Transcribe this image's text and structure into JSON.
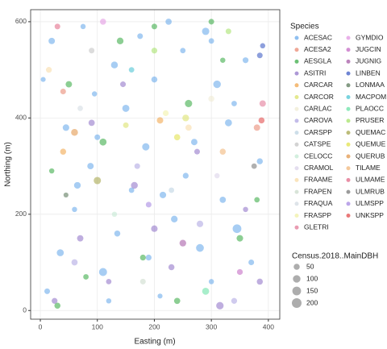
{
  "chart_data": {
    "type": "scatter",
    "x_label": "Easting (m)",
    "y_label": "Northing (m)",
    "xlim": [
      -17,
      420
    ],
    "ylim": [
      -18,
      625
    ],
    "xticks": [
      0,
      100,
      200,
      300,
      400
    ],
    "yticks": [
      0,
      200,
      400,
      600
    ],
    "grid": true,
    "legend_title": "Species",
    "legend_position": "right",
    "size_title": "Census.2018..MainDBH",
    "size_legend": [
      50,
      100,
      150,
      200
    ],
    "series": [
      {
        "name": "ACESAC",
        "color": "#5fa4ea",
        "x": [
          12,
          35,
          60,
          88,
          110,
          135,
          160,
          185,
          210,
          235,
          255,
          280,
          300,
          320,
          345,
          370,
          45,
          95,
          150,
          200,
          250,
          310,
          360,
          20,
          75,
          130,
          175,
          225,
          290,
          340,
          385,
          65,
          120,
          190,
          270,
          330,
          5,
          100,
          215,
          300
        ],
        "y": [
          40,
          120,
          210,
          300,
          80,
          160,
          250,
          340,
          30,
          190,
          280,
          130,
          60,
          230,
          170,
          100,
          380,
          450,
          420,
          480,
          540,
          470,
          520,
          560,
          590,
          510,
          570,
          600,
          580,
          430,
          310,
          260,
          20,
          110,
          350,
          390,
          480,
          360,
          240,
          560
        ],
        "sizes": [
          40,
          80,
          30,
          60,
          120,
          50,
          35,
          90,
          25,
          70,
          45,
          110,
          30,
          55,
          150,
          40,
          65,
          30,
          85,
          50,
          35,
          100,
          45,
          60,
          30,
          75,
          40,
          55,
          90,
          35,
          50,
          70,
          30,
          45,
          60,
          80,
          25,
          40,
          65,
          35
        ]
      },
      {
        "name": "ACESA2",
        "color": "#e8826a",
        "x": [
          380,
          40
        ],
        "y": [
          380,
          455
        ],
        "sizes": [
          60,
          40
        ]
      },
      {
        "name": "AESGLA",
        "color": "#2ea53b",
        "x": [
          30,
          80,
          140,
          200,
          260,
          320,
          50,
          180,
          240,
          380,
          110,
          300,
          20,
          350
        ],
        "y": [
          10,
          70,
          560,
          590,
          430,
          520,
          470,
          110,
          20,
          230,
          350,
          600,
          290,
          150
        ],
        "sizes": [
          50,
          35,
          70,
          40,
          90,
          30,
          60,
          45,
          55,
          35,
          80,
          40,
          30,
          65
        ]
      },
      {
        "name": "ASITRI",
        "color": "#8a6cc4",
        "x": [
          25,
          70,
          120,
          165,
          230,
          275,
          315,
          360,
          90,
          200,
          145,
          385
        ],
        "y": [
          20,
          150,
          60,
          260,
          90,
          330,
          10,
          210,
          390,
          170,
          470,
          60
        ],
        "sizes": [
          45,
          60,
          35,
          75,
          50,
          40,
          95,
          30,
          55,
          65,
          40,
          50
        ]
      },
      {
        "name": "CARCAR",
        "color": "#f0a040",
        "x": [
          40,
          210
        ],
        "y": [
          330,
          395
        ],
        "sizes": [
          50,
          60
        ]
      },
      {
        "name": "CARCOR",
        "color": "#d8e060",
        "x": [
          150,
          255
        ],
        "y": [
          385,
          400
        ],
        "sizes": [
          40,
          70
        ]
      },
      {
        "name": "CARLAC",
        "color": "#eee9cf",
        "x": [
          300
        ],
        "y": [
          440
        ],
        "sizes": [
          50
        ]
      },
      {
        "name": "CAROVA",
        "color": "#a9a0e0",
        "x": [
          60,
          170,
          280,
          340
        ],
        "y": [
          100,
          300,
          180,
          20
        ],
        "sizes": [
          55,
          40,
          65,
          45
        ]
      },
      {
        "name": "CARSPP",
        "color": "#b8d0e0",
        "x": [
          230
        ],
        "y": [
          250
        ],
        "sizes": [
          35
        ]
      },
      {
        "name": "CATSPE",
        "color": "#c0c0c0",
        "x": [
          90
        ],
        "y": [
          540
        ],
        "sizes": [
          40
        ]
      },
      {
        "name": "CELOCC",
        "color": "#c0e8d0",
        "x": [
          130
        ],
        "y": [
          200
        ],
        "sizes": [
          30
        ]
      },
      {
        "name": "CRAMOL",
        "color": "#d8d0e8",
        "x": [
          310
        ],
        "y": [
          280
        ],
        "sizes": [
          30
        ]
      },
      {
        "name": "FRAAME",
        "color": "#f8d8a0",
        "x": [
          15,
          260
        ],
        "y": [
          500,
          380
        ],
        "sizes": [
          45,
          55
        ]
      },
      {
        "name": "FRAPEN",
        "color": "#c8d8c8",
        "x": [
          180
        ],
        "y": [
          60
        ],
        "sizes": [
          40
        ]
      },
      {
        "name": "FRAQUA",
        "color": "#d0d8e0",
        "x": [
          70
        ],
        "y": [
          420
        ],
        "sizes": [
          35
        ]
      },
      {
        "name": "FRASPP",
        "color": "#f0f0a0",
        "x": [
          220
        ],
        "y": [
          410
        ],
        "sizes": [
          45
        ]
      },
      {
        "name": "GLETRI",
        "color": "#e07090",
        "x": [
          390
        ],
        "y": [
          430
        ],
        "sizes": [
          60
        ]
      },
      {
        "name": "GYMDIO",
        "color": "#e090e0",
        "x": [
          110
        ],
        "y": [
          600
        ],
        "sizes": [
          50
        ]
      },
      {
        "name": "JUGCIN",
        "color": "#c060c0",
        "x": [
          350
        ],
        "y": [
          80
        ],
        "sizes": [
          45
        ]
      },
      {
        "name": "JUGNIG",
        "color": "#a050a0",
        "x": [
          250
        ],
        "y": [
          140
        ],
        "sizes": [
          70
        ]
      },
      {
        "name": "LINBEN",
        "color": "#3050c0",
        "x": [
          385,
          390
        ],
        "y": [
          530,
          550
        ],
        "sizes": [
          40,
          30
        ]
      },
      {
        "name": "LONMAA",
        "color": "#507050",
        "x": [
          45
        ],
        "y": [
          240
        ],
        "sizes": [
          25
        ]
      },
      {
        "name": "MACPOM",
        "color": "#40c0d0",
        "x": [
          160
        ],
        "y": [
          500
        ],
        "sizes": [
          35
        ]
      },
      {
        "name": "PLAOCC",
        "color": "#60e0a0",
        "x": [
          290
        ],
        "y": [
          40
        ],
        "sizes": [
          80
        ]
      },
      {
        "name": "PRUSER",
        "color": "#a0e060",
        "x": [
          200,
          330
        ],
        "y": [
          540,
          580
        ],
        "sizes": [
          45,
          40
        ]
      },
      {
        "name": "QUEMAC",
        "color": "#a0a040",
        "x": [
          100
        ],
        "y": [
          270
        ],
        "sizes": [
          90
        ]
      },
      {
        "name": "QUEMUE",
        "color": "#e0e040",
        "x": [
          240
        ],
        "y": [
          360
        ],
        "sizes": [
          55
        ]
      },
      {
        "name": "QUERUB",
        "color": "#e09040",
        "x": [
          60
        ],
        "y": [
          370
        ],
        "sizes": [
          75
        ]
      },
      {
        "name": "TILAME",
        "color": "#f0b070",
        "x": [
          320
        ],
        "y": [
          330
        ],
        "sizes": [
          50
        ]
      },
      {
        "name": "ULMAME",
        "color": "#e06080",
        "x": [
          30
        ],
        "y": [
          590
        ],
        "sizes": [
          40
        ]
      },
      {
        "name": "ULMRUB",
        "color": "#707070",
        "x": [
          375
        ],
        "y": [
          300
        ],
        "sizes": [
          35
        ]
      },
      {
        "name": "ULMSPP",
        "color": "#a080e0",
        "x": [
          190
        ],
        "y": [
          220
        ],
        "sizes": [
          40
        ]
      },
      {
        "name": "UNKSPP",
        "color": "#e04040",
        "x": [
          388
        ],
        "y": [
          395
        ],
        "sizes": [
          50
        ]
      }
    ]
  }
}
